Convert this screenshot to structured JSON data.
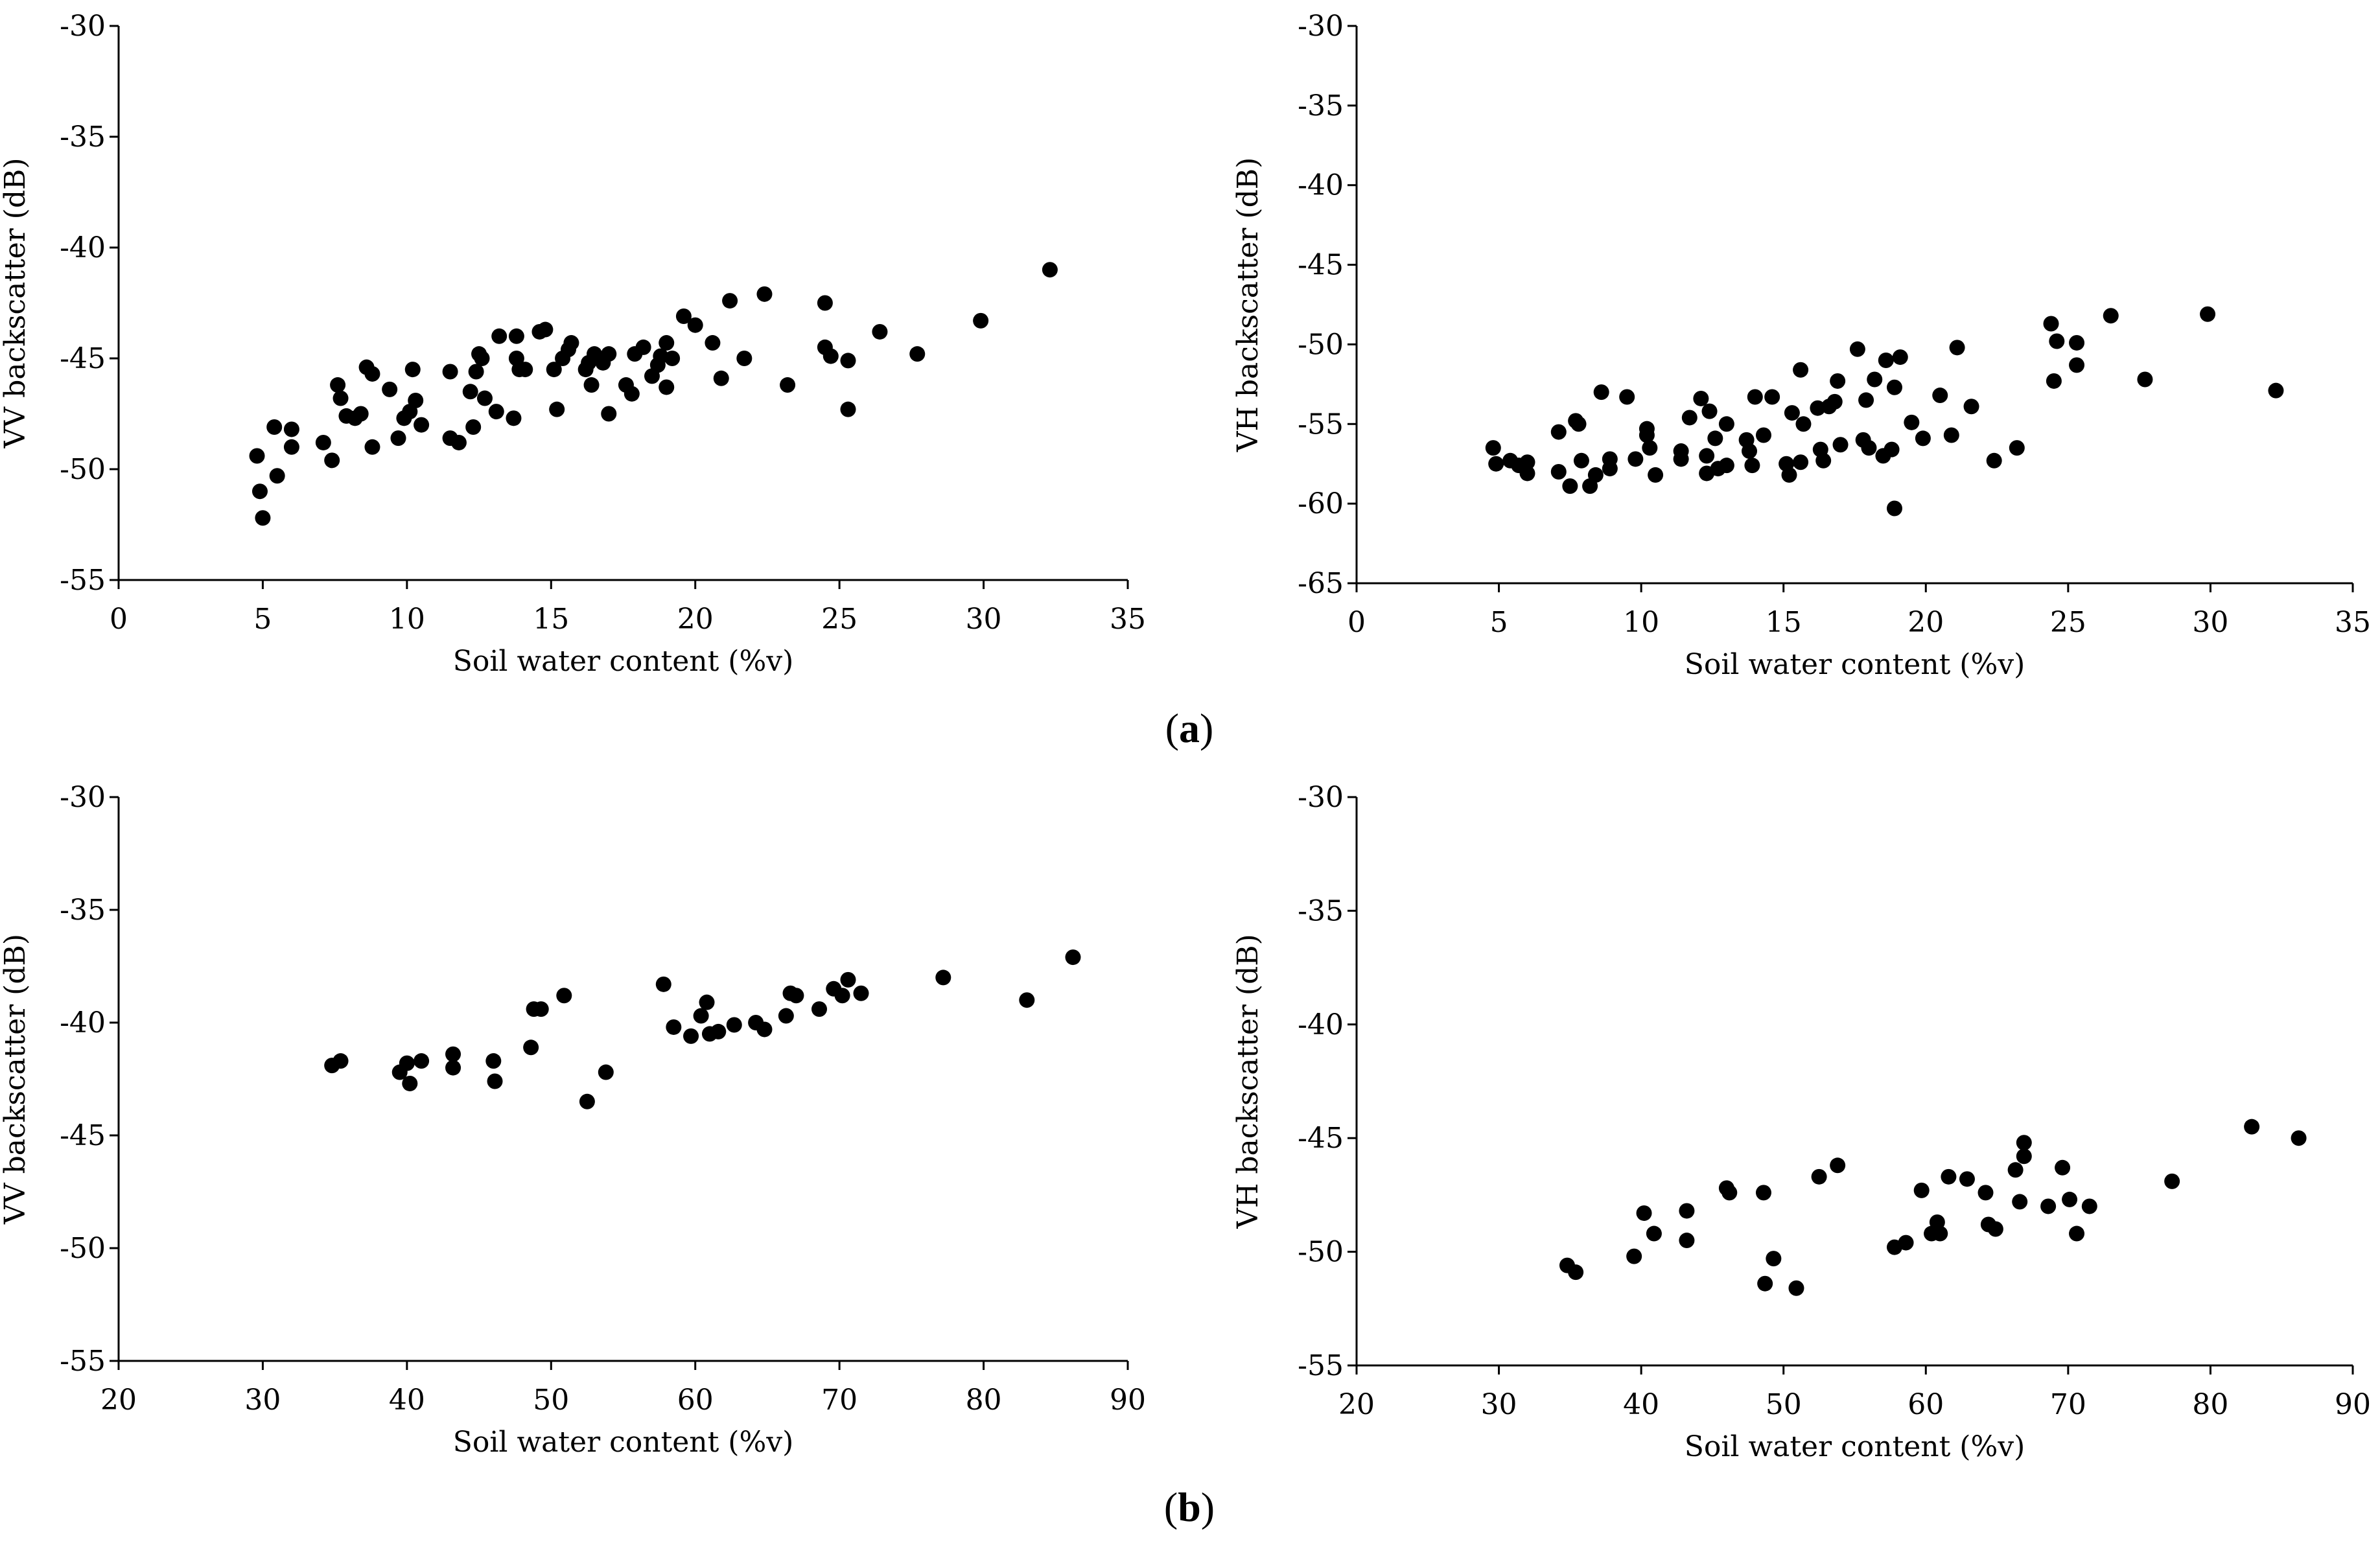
{
  "panel_labels": [
    {
      "open": "(",
      "letter": "a",
      "close": ")"
    },
    {
      "open": "(",
      "letter": "b",
      "close": ")"
    }
  ],
  "chart_data": [
    {
      "type": "scatter",
      "title": "",
      "xlabel": "Soil water content (%v)",
      "ylabel": "VV backscatter (dB)",
      "xlim": [
        0,
        35
      ],
      "ylim": [
        -55,
        -30
      ],
      "xticks": [
        0,
        5,
        10,
        15,
        20,
        25,
        30,
        35
      ],
      "yticks": [
        -55,
        -50,
        -45,
        -40,
        -35,
        -30
      ],
      "grid": false,
      "points": [
        [
          4.8,
          -49.4
        ],
        [
          4.9,
          -51.0
        ],
        [
          5.0,
          -52.2
        ],
        [
          5.4,
          -48.1
        ],
        [
          5.5,
          -50.3
        ],
        [
          6.0,
          -49.0
        ],
        [
          6.0,
          -48.2
        ],
        [
          7.1,
          -48.8
        ],
        [
          7.4,
          -49.6
        ],
        [
          7.6,
          -46.2
        ],
        [
          7.7,
          -46.8
        ],
        [
          7.9,
          -47.6
        ],
        [
          8.2,
          -47.7
        ],
        [
          8.4,
          -47.5
        ],
        [
          8.6,
          -45.4
        ],
        [
          8.8,
          -45.7
        ],
        [
          8.8,
          -49.0
        ],
        [
          9.4,
          -46.4
        ],
        [
          9.7,
          -48.6
        ],
        [
          9.9,
          -47.7
        ],
        [
          10.1,
          -47.4
        ],
        [
          10.2,
          -45.5
        ],
        [
          10.3,
          -46.9
        ],
        [
          10.5,
          -48.0
        ],
        [
          11.5,
          -45.6
        ],
        [
          11.5,
          -48.6
        ],
        [
          11.8,
          -48.8
        ],
        [
          12.2,
          -46.5
        ],
        [
          12.3,
          -48.1
        ],
        [
          12.4,
          -45.6
        ],
        [
          12.5,
          -44.8
        ],
        [
          12.6,
          -45.0
        ],
        [
          12.7,
          -46.8
        ],
        [
          13.1,
          -47.4
        ],
        [
          13.2,
          -44.0
        ],
        [
          13.7,
          -47.7
        ],
        [
          13.8,
          -44.0
        ],
        [
          13.8,
          -45.0
        ],
        [
          13.9,
          -45.5
        ],
        [
          14.1,
          -45.5
        ],
        [
          14.6,
          -43.8
        ],
        [
          14.8,
          -43.7
        ],
        [
          15.1,
          -45.5
        ],
        [
          15.2,
          -47.3
        ],
        [
          15.4,
          -45.0
        ],
        [
          15.6,
          -44.6
        ],
        [
          15.7,
          -44.3
        ],
        [
          16.2,
          -45.5
        ],
        [
          16.3,
          -45.2
        ],
        [
          16.4,
          -46.2
        ],
        [
          16.5,
          -44.8
        ],
        [
          16.8,
          -45.2
        ],
        [
          17.0,
          -44.8
        ],
        [
          17.0,
          -47.5
        ],
        [
          17.6,
          -46.2
        ],
        [
          17.8,
          -46.6
        ],
        [
          17.9,
          -44.8
        ],
        [
          18.2,
          -44.5
        ],
        [
          18.5,
          -45.8
        ],
        [
          18.7,
          -45.3
        ],
        [
          18.8,
          -44.9
        ],
        [
          19.0,
          -46.3
        ],
        [
          19.0,
          -44.3
        ],
        [
          19.2,
          -45.0
        ],
        [
          19.6,
          -43.1
        ],
        [
          20.0,
          -43.5
        ],
        [
          20.6,
          -44.3
        ],
        [
          20.9,
          -45.9
        ],
        [
          21.2,
          -42.4
        ],
        [
          21.7,
          -45.0
        ],
        [
          22.4,
          -42.1
        ],
        [
          23.2,
          -46.2
        ],
        [
          24.5,
          -42.5
        ],
        [
          24.5,
          -44.5
        ],
        [
          24.7,
          -44.9
        ],
        [
          25.3,
          -45.1
        ],
        [
          25.3,
          -47.3
        ],
        [
          26.4,
          -43.8
        ],
        [
          27.7,
          -44.8
        ],
        [
          29.9,
          -43.3
        ],
        [
          32.3,
          -41.0
        ]
      ]
    },
    {
      "type": "scatter",
      "title": "",
      "xlabel": "Soil water content (%v)",
      "ylabel": "VH backscatter (dB)",
      "xlim": [
        0,
        35
      ],
      "ylim": [
        -65,
        -30
      ],
      "xticks": [
        0,
        5,
        10,
        15,
        20,
        25,
        30,
        35
      ],
      "yticks": [
        -65,
        -60,
        -55,
        -50,
        -45,
        -40,
        -35,
        -30
      ],
      "grid": false,
      "points": [
        [
          4.8,
          -56.5
        ],
        [
          4.9,
          -57.5
        ],
        [
          5.4,
          -57.3
        ],
        [
          5.7,
          -57.6
        ],
        [
          6.0,
          -58.1
        ],
        [
          6.0,
          -57.4
        ],
        [
          7.1,
          -55.5
        ],
        [
          7.1,
          -58.0
        ],
        [
          7.5,
          -58.9
        ],
        [
          7.7,
          -54.8
        ],
        [
          7.8,
          -55.0
        ],
        [
          7.9,
          -57.3
        ],
        [
          8.2,
          -58.9
        ],
        [
          8.4,
          -58.2
        ],
        [
          8.6,
          -53.0
        ],
        [
          8.9,
          -57.8
        ],
        [
          8.9,
          -57.2
        ],
        [
          9.5,
          -53.3
        ],
        [
          9.8,
          -57.2
        ],
        [
          10.2,
          -55.3
        ],
        [
          10.2,
          -55.7
        ],
        [
          10.3,
          -56.5
        ],
        [
          10.5,
          -58.2
        ],
        [
          11.4,
          -57.2
        ],
        [
          11.4,
          -56.7
        ],
        [
          11.7,
          -54.6
        ],
        [
          12.1,
          -53.4
        ],
        [
          12.3,
          -57.0
        ],
        [
          12.3,
          -58.1
        ],
        [
          12.4,
          -54.2
        ],
        [
          12.6,
          -55.9
        ],
        [
          12.7,
          -57.8
        ],
        [
          13.0,
          -57.6
        ],
        [
          13.0,
          -55.0
        ],
        [
          13.7,
          -56.0
        ],
        [
          13.8,
          -56.7
        ],
        [
          13.9,
          -57.6
        ],
        [
          14.0,
          -53.3
        ],
        [
          14.3,
          -55.7
        ],
        [
          14.6,
          -53.3
        ],
        [
          15.1,
          -57.5
        ],
        [
          15.2,
          -58.2
        ],
        [
          15.3,
          -54.3
        ],
        [
          15.6,
          -51.6
        ],
        [
          15.6,
          -57.4
        ],
        [
          15.7,
          -55.0
        ],
        [
          16.2,
          -54.0
        ],
        [
          16.3,
          -56.6
        ],
        [
          16.4,
          -57.3
        ],
        [
          16.6,
          -53.9
        ],
        [
          16.8,
          -53.6
        ],
        [
          16.9,
          -52.3
        ],
        [
          17.0,
          -56.3
        ],
        [
          17.6,
          -50.3
        ],
        [
          17.8,
          -56.0
        ],
        [
          17.9,
          -53.5
        ],
        [
          18.0,
          -56.5
        ],
        [
          18.2,
          -52.2
        ],
        [
          18.5,
          -57.0
        ],
        [
          18.6,
          -51.0
        ],
        [
          18.8,
          -56.6
        ],
        [
          18.9,
          -52.7
        ],
        [
          18.9,
          -60.3
        ],
        [
          19.1,
          -50.8
        ],
        [
          19.5,
          -54.9
        ],
        [
          19.9,
          -55.9
        ],
        [
          20.5,
          -53.2
        ],
        [
          20.9,
          -55.7
        ],
        [
          21.1,
          -50.2
        ],
        [
          21.6,
          -53.9
        ],
        [
          22.4,
          -57.3
        ],
        [
          23.2,
          -56.5
        ],
        [
          24.4,
          -48.7
        ],
        [
          24.5,
          -52.3
        ],
        [
          24.6,
          -49.8
        ],
        [
          25.3,
          -49.9
        ],
        [
          25.3,
          -51.3
        ],
        [
          26.5,
          -48.2
        ],
        [
          27.7,
          -52.2
        ],
        [
          29.9,
          -48.1
        ],
        [
          32.3,
          -52.9
        ]
      ]
    },
    {
      "type": "scatter",
      "title": "",
      "xlabel": "Soil water content (%v)",
      "ylabel": "VV backscatter (dB)",
      "xlim": [
        20,
        90
      ],
      "ylim": [
        -55,
        -30
      ],
      "xticks": [
        20,
        30,
        40,
        50,
        60,
        70,
        80,
        90
      ],
      "yticks": [
        -55,
        -50,
        -45,
        -40,
        -35,
        -30
      ],
      "grid": false,
      "points": [
        [
          34.8,
          -41.9
        ],
        [
          35.4,
          -41.7
        ],
        [
          39.5,
          -42.2
        ],
        [
          40.0,
          -41.8
        ],
        [
          40.2,
          -42.7
        ],
        [
          41.0,
          -41.7
        ],
        [
          43.2,
          -41.4
        ],
        [
          43.2,
          -42.0
        ],
        [
          46.0,
          -41.7
        ],
        [
          46.1,
          -42.6
        ],
        [
          48.6,
          -41.1
        ],
        [
          48.8,
          -39.4
        ],
        [
          49.3,
          -39.4
        ],
        [
          50.9,
          -38.8
        ],
        [
          52.5,
          -43.5
        ],
        [
          53.8,
          -42.2
        ],
        [
          57.8,
          -38.3
        ],
        [
          58.5,
          -40.2
        ],
        [
          59.7,
          -40.6
        ],
        [
          60.4,
          -39.7
        ],
        [
          60.8,
          -39.1
        ],
        [
          61.0,
          -40.5
        ],
        [
          61.6,
          -40.4
        ],
        [
          62.7,
          -40.1
        ],
        [
          64.2,
          -40.0
        ],
        [
          64.8,
          -40.3
        ],
        [
          66.3,
          -39.7
        ],
        [
          66.6,
          -38.7
        ],
        [
          67.0,
          -38.8
        ],
        [
          68.6,
          -39.4
        ],
        [
          69.6,
          -38.5
        ],
        [
          70.2,
          -38.8
        ],
        [
          70.6,
          -38.1
        ],
        [
          71.5,
          -38.7
        ],
        [
          77.2,
          -38.0
        ],
        [
          83.0,
          -39.0
        ],
        [
          86.2,
          -37.1
        ]
      ]
    },
    {
      "type": "scatter",
      "title": "",
      "xlabel": "Soil water content (%v)",
      "ylabel": "VH backscatter (dB)",
      "xlim": [
        20,
        90
      ],
      "ylim": [
        -55,
        -30
      ],
      "xticks": [
        20,
        30,
        40,
        50,
        60,
        70,
        80,
        90
      ],
      "yticks": [
        -55,
        -50,
        -45,
        -40,
        -35,
        -30
      ],
      "grid": false,
      "points": [
        [
          34.8,
          -50.6
        ],
        [
          35.4,
          -50.9
        ],
        [
          39.5,
          -50.2
        ],
        [
          40.2,
          -48.3
        ],
        [
          40.9,
          -49.2
        ],
        [
          43.2,
          -48.2
        ],
        [
          43.2,
          -49.5
        ],
        [
          46.0,
          -47.2
        ],
        [
          46.2,
          -47.4
        ],
        [
          48.6,
          -47.4
        ],
        [
          48.7,
          -51.4
        ],
        [
          49.3,
          -50.3
        ],
        [
          50.9,
          -51.6
        ],
        [
          52.5,
          -46.7
        ],
        [
          53.8,
          -46.2
        ],
        [
          57.8,
          -49.8
        ],
        [
          58.6,
          -49.6
        ],
        [
          59.7,
          -47.3
        ],
        [
          60.4,
          -49.2
        ],
        [
          60.8,
          -48.7
        ],
        [
          61.0,
          -49.2
        ],
        [
          61.6,
          -46.7
        ],
        [
          62.9,
          -46.8
        ],
        [
          64.2,
          -47.4
        ],
        [
          64.4,
          -48.8
        ],
        [
          64.9,
          -49.0
        ],
        [
          66.3,
          -46.4
        ],
        [
          66.6,
          -47.8
        ],
        [
          66.9,
          -45.2
        ],
        [
          66.9,
          -45.8
        ],
        [
          68.6,
          -48.0
        ],
        [
          69.6,
          -46.3
        ],
        [
          70.1,
          -47.7
        ],
        [
          70.6,
          -49.2
        ],
        [
          71.5,
          -48.0
        ],
        [
          77.3,
          -46.9
        ],
        [
          82.9,
          -44.5
        ],
        [
          86.2,
          -45.0
        ]
      ]
    }
  ]
}
